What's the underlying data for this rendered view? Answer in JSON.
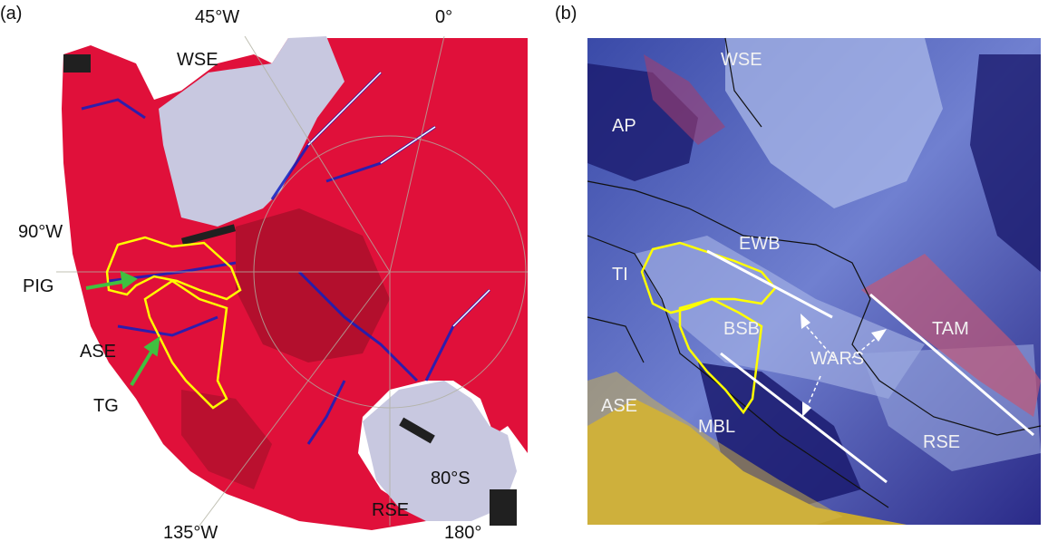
{
  "panel_a": {
    "tag": "(a)",
    "labels": {
      "lon_45w": "45°W",
      "lon_0": "0°",
      "lon_90w": "90°W",
      "lon_135w": "135°W",
      "lon_180": "180°",
      "lat_80s": "80°S",
      "wse": "WSE",
      "rse": "RSE",
      "ase": "ASE",
      "pig": "PIG",
      "tg": "TG"
    },
    "colors": {
      "ice_shelf": "#c8c8e0",
      "land": "#e0103a",
      "fast_flow": "#1020c0",
      "outline": "#ffff00",
      "arrow": "#40c040"
    }
  },
  "panel_b": {
    "tag": "(b)",
    "labels": {
      "wse": "WSE",
      "ap": "AP",
      "ewb": "EWB",
      "ti": "TI",
      "bsb": "BSB",
      "tam": "TAM",
      "wars": "WARS",
      "ase": "ASE",
      "mbl": "MBL",
      "rse": "RSE"
    },
    "colors": {
      "deep": "#1a1a6e",
      "shallow": "#aab8e8",
      "ocean": "#c8a830",
      "outline": "#ffff00",
      "rift": "#ffffff"
    }
  }
}
